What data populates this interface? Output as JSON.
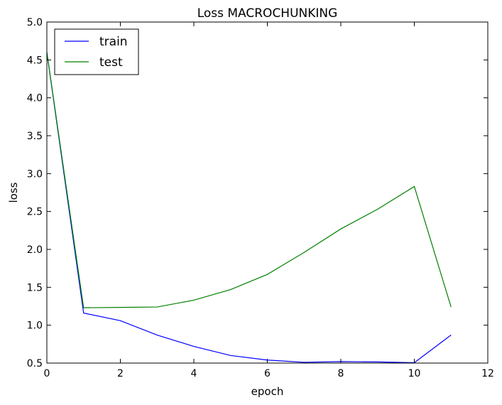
{
  "chart_data": {
    "type": "line",
    "title": "Loss MACROCHUNKING",
    "xlabel": "epoch",
    "ylabel": "loss",
    "xlim": [
      0,
      12
    ],
    "ylim": [
      0.5,
      5.0
    ],
    "xticks": [
      0,
      2,
      4,
      6,
      8,
      10,
      12
    ],
    "xtick_labels": [
      "0",
      "2",
      "4",
      "6",
      "8",
      "10",
      "12"
    ],
    "yticks": [
      0.5,
      1.0,
      1.5,
      2.0,
      2.5,
      3.0,
      3.5,
      4.0,
      4.5,
      5.0
    ],
    "ytick_labels": [
      "0.5",
      "1.0",
      "1.5",
      "2.0",
      "2.5",
      "3.0",
      "3.5",
      "4.0",
      "4.5",
      "5.0"
    ],
    "grid": false,
    "legend_position": "top-left",
    "x": [
      0,
      1,
      2,
      3,
      4,
      5,
      6,
      7,
      8,
      9,
      10,
      11
    ],
    "series": [
      {
        "name": "train",
        "color": "#0000ff",
        "values": [
          4.6,
          1.16,
          1.06,
          0.87,
          0.72,
          0.6,
          0.54,
          0.51,
          0.52,
          0.515,
          0.505,
          0.87
        ]
      },
      {
        "name": "test",
        "color": "#008000",
        "values": [
          4.6,
          1.23,
          1.235,
          1.24,
          1.33,
          1.47,
          1.67,
          1.96,
          2.27,
          2.53,
          2.83,
          1.24
        ]
      }
    ]
  }
}
